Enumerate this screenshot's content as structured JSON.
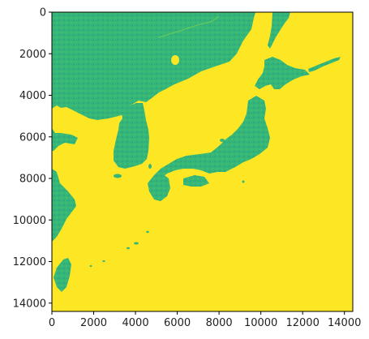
{
  "chart_data": {
    "type": "heatmap",
    "title": "",
    "xlabel": "",
    "ylabel": "",
    "xlim": [
      0,
      14400
    ],
    "ylim": [
      14400,
      0
    ],
    "y_axis_inverted": true,
    "grid": false,
    "legend": "none",
    "colormap": "viridis (upper range)",
    "x_ticks": [
      0,
      2000,
      4000,
      6000,
      8000,
      10000,
      12000,
      14000
    ],
    "y_ticks": [
      0,
      2000,
      4000,
      6000,
      8000,
      10000,
      12000,
      14000
    ],
    "x_tick_labels": [
      "0",
      "2000",
      "4000",
      "6000",
      "8000",
      "10000",
      "12000",
      "14000"
    ],
    "y_tick_labels": [
      "0",
      "2000",
      "4000",
      "6000",
      "8000",
      "10000",
      "12000",
      "14000"
    ],
    "colors": {
      "background_value": "#fde725",
      "land_value": "#35b779",
      "land_dark": "#2a9d7c",
      "land_light": "#5ec962",
      "axis": "#000000"
    }
  }
}
